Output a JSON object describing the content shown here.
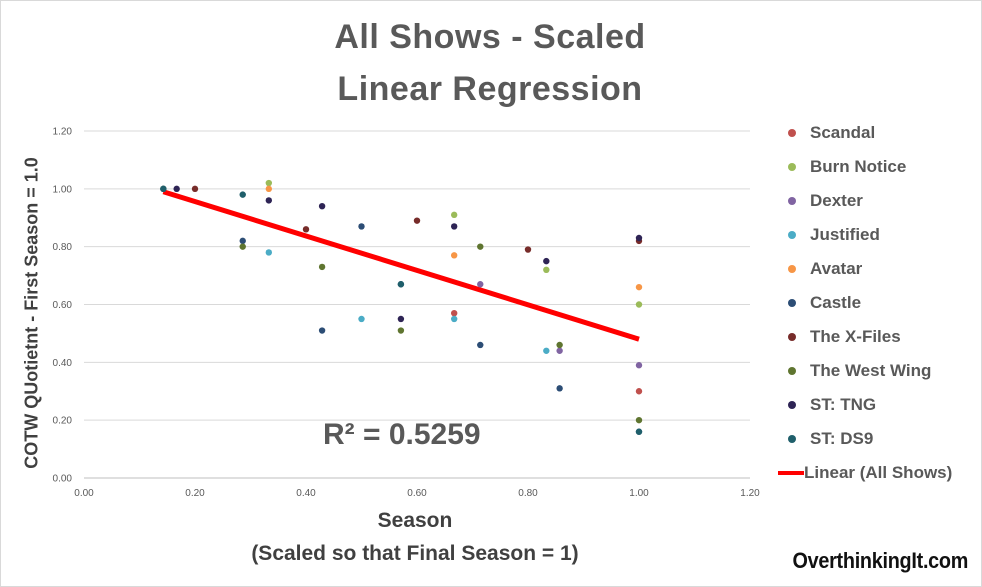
{
  "chart_data": {
    "type": "scatter",
    "title": "All Shows - Scaled",
    "subtitle": "Linear Regression",
    "xlabel": "Season",
    "xlabel_note": "(Scaled so that Final Season = 1)",
    "ylabel": "COTW QUotietnt - First Season = 1.0",
    "xlim": [
      0,
      1.2
    ],
    "ylim": [
      0,
      1.2
    ],
    "x_ticks": [
      "0.00",
      "0.20",
      "0.40",
      "0.60",
      "0.80",
      "1.00",
      "1.20"
    ],
    "y_ticks": [
      "0.00",
      "0.20",
      "0.40",
      "0.60",
      "0.80",
      "1.00",
      "1.20"
    ],
    "grid": true,
    "legend_position": "right",
    "annotation": "R² = 0.5259",
    "series": [
      {
        "name": "Scandal",
        "color": "#c0504d",
        "points": [
          [
            0.667,
            0.57
          ],
          [
            1.0,
            0.3
          ]
        ]
      },
      {
        "name": "Burn Notice",
        "color": "#9bbb59",
        "points": [
          [
            0.143,
            1.0
          ],
          [
            0.333,
            1.02
          ],
          [
            0.667,
            0.91
          ],
          [
            0.833,
            0.72
          ],
          [
            1.0,
            0.6
          ]
        ]
      },
      {
        "name": "Dexter",
        "color": "#8064a2",
        "points": [
          [
            0.714,
            0.67
          ],
          [
            0.857,
            0.44
          ],
          [
            1.0,
            0.39
          ]
        ]
      },
      {
        "name": "Justified",
        "color": "#4bacc6",
        "points": [
          [
            0.333,
            0.78
          ],
          [
            0.5,
            0.55
          ],
          [
            0.667,
            0.55
          ],
          [
            0.833,
            0.44
          ]
        ]
      },
      {
        "name": "Avatar",
        "color": "#f79646",
        "points": [
          [
            0.333,
            1.0
          ],
          [
            0.667,
            0.77
          ],
          [
            1.0,
            0.66
          ]
        ]
      },
      {
        "name": "Castle",
        "color": "#2c4d75",
        "points": [
          [
            0.143,
            1.0
          ],
          [
            0.286,
            0.82
          ],
          [
            0.429,
            0.51
          ],
          [
            0.5,
            0.87
          ],
          [
            0.571,
            0.67
          ],
          [
            0.714,
            0.46
          ],
          [
            0.857,
            0.31
          ],
          [
            1.0,
            0.16
          ]
        ]
      },
      {
        "name": "The X-Files",
        "color": "#772c2a",
        "points": [
          [
            0.2,
            1.0
          ],
          [
            0.4,
            0.86
          ],
          [
            0.6,
            0.89
          ],
          [
            0.8,
            0.79
          ],
          [
            1.0,
            0.82
          ]
        ]
      },
      {
        "name": "The West Wing",
        "color": "#5f7530",
        "points": [
          [
            0.286,
            0.8
          ],
          [
            0.429,
            0.73
          ],
          [
            0.571,
            0.51
          ],
          [
            0.714,
            0.8
          ],
          [
            0.857,
            0.46
          ],
          [
            1.0,
            0.2
          ]
        ]
      },
      {
        "name": "ST: TNG",
        "color": "#2e2455",
        "points": [
          [
            0.167,
            1.0
          ],
          [
            0.333,
            0.96
          ],
          [
            0.429,
            0.94
          ],
          [
            0.571,
            0.55
          ],
          [
            0.667,
            0.87
          ],
          [
            0.833,
            0.75
          ],
          [
            1.0,
            0.83
          ]
        ]
      },
      {
        "name": "ST: DS9",
        "color": "#1f5f6b",
        "points": [
          [
            0.143,
            1.0
          ],
          [
            0.286,
            0.98
          ],
          [
            0.571,
            0.67
          ],
          [
            1.0,
            0.16
          ]
        ]
      }
    ],
    "trendline": {
      "name": "Linear (All Shows)",
      "color": "#ff0000",
      "x": [
        0.143,
        1.0
      ],
      "y": [
        0.99,
        0.48
      ]
    }
  },
  "branding": "OverthinkingIt.com"
}
